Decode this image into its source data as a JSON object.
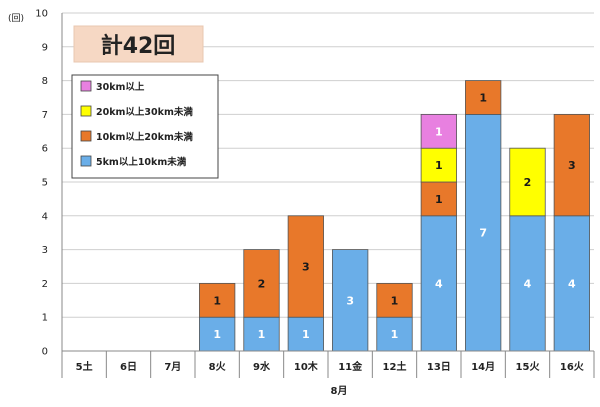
{
  "chart_data": {
    "type": "bar",
    "stacked": true,
    "title": "計42回",
    "y_unit": "(回)",
    "xlabel": "8月",
    "ylim": [
      0,
      10
    ],
    "yticks": [
      "0",
      "1",
      "2",
      "3",
      "4",
      "5",
      "6",
      "7",
      "8",
      "9",
      "10"
    ],
    "categories": [
      "5土",
      "6日",
      "7月",
      "8火",
      "9水",
      "10木",
      "11金",
      "12土",
      "13日",
      "14月",
      "15火",
      "16火"
    ],
    "legend_position": "top-left",
    "grid": "horizontal",
    "series": [
      {
        "name": "5km以上10km未満",
        "color": "#6aaee8",
        "values": [
          0,
          0,
          0,
          1,
          1,
          1,
          3,
          1,
          4,
          7,
          4,
          4
        ],
        "labels": [
          "",
          "",
          "",
          "1",
          "1",
          "1",
          "3",
          "1",
          "4",
          "7",
          "4",
          "4"
        ],
        "label_color": "#ffffff"
      },
      {
        "name": "10km以上20km未満",
        "color": "#e8782a",
        "values": [
          0,
          0,
          0,
          1,
          2,
          3,
          0,
          1,
          1,
          1,
          0,
          3
        ],
        "labels": [
          "",
          "",
          "",
          "1",
          "2",
          "3",
          "",
          "1",
          "1",
          "1",
          "",
          "3"
        ],
        "label_color": "#1a1a1a"
      },
      {
        "name": "20km以上30km未満",
        "color": "#ffff00",
        "values": [
          0,
          0,
          0,
          0,
          0,
          0,
          0,
          0,
          1,
          0,
          2,
          0
        ],
        "labels": [
          "",
          "",
          "",
          "",
          "",
          "",
          "",
          "",
          "1",
          "",
          "2",
          ""
        ],
        "label_color": "#1a1a1a"
      },
      {
        "name": "30km以上",
        "color": "#e880e0",
        "values": [
          0,
          0,
          0,
          0,
          0,
          0,
          0,
          0,
          1,
          0,
          0,
          0
        ],
        "labels": [
          "",
          "",
          "",
          "",
          "",
          "",
          "",
          "",
          "1",
          "",
          "",
          ""
        ],
        "label_color": "#ffffff"
      }
    ]
  }
}
